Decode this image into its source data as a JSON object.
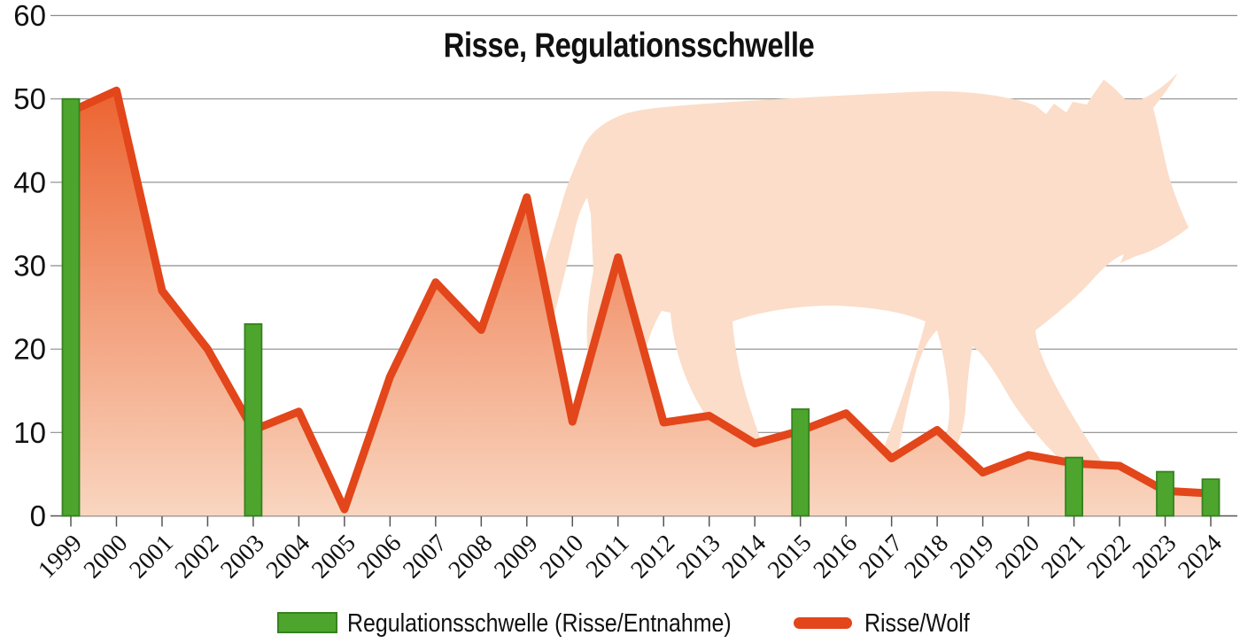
{
  "title": "Risse, Regulationsschwelle",
  "watermark_icon": "wolf-silhouette",
  "legend": {
    "bar_label": "Regulationsschwelle (Risse/Entnahme)",
    "line_label": "Risse/Wolf"
  },
  "colors": {
    "line": "#e2461a",
    "area_top": "#ec6330",
    "area_bottom": "#f9d6c0",
    "bar_fill": "#4da52e",
    "bar_stroke": "#37811f",
    "wolf": "#fbddc9",
    "grid": "#8c8c8c",
    "axis": "#555555",
    "text": "#111111"
  },
  "chart_data": {
    "type": "mixed-bar-line",
    "title": "Risse, Regulationsschwelle",
    "x": [
      1999,
      2000,
      2001,
      2002,
      2003,
      2004,
      2005,
      2006,
      2007,
      2008,
      2009,
      2010,
      2011,
      2012,
      2013,
      2014,
      2015,
      2016,
      2017,
      2018,
      2019,
      2020,
      2021,
      2022,
      2023,
      2024
    ],
    "series": [
      {
        "name": "Regulationsschwelle (Risse/Entnahme)",
        "type": "bar",
        "values": [
          50,
          null,
          null,
          null,
          23,
          null,
          null,
          null,
          null,
          null,
          null,
          null,
          null,
          null,
          null,
          null,
          12.8,
          null,
          null,
          null,
          null,
          null,
          7,
          null,
          5.3,
          4.4
        ]
      },
      {
        "name": "Risse/Wolf",
        "type": "line-area",
        "values": [
          48.5,
          51,
          27,
          20,
          10.3,
          12.5,
          0.8,
          16.7,
          28,
          22.3,
          38.2,
          11.3,
          31,
          11.2,
          12,
          8.7,
          10.2,
          12.3,
          6.9,
          10.3,
          5.2,
          7.3,
          6.3,
          6.0,
          3.0,
          2.7
        ]
      }
    ],
    "ylim": [
      0,
      60
    ],
    "yticks": [
      0,
      10,
      20,
      30,
      40,
      50,
      60
    ],
    "grid": "horizontal",
    "legend_position": "bottom",
    "background_watermark": "wolf-silhouette"
  }
}
